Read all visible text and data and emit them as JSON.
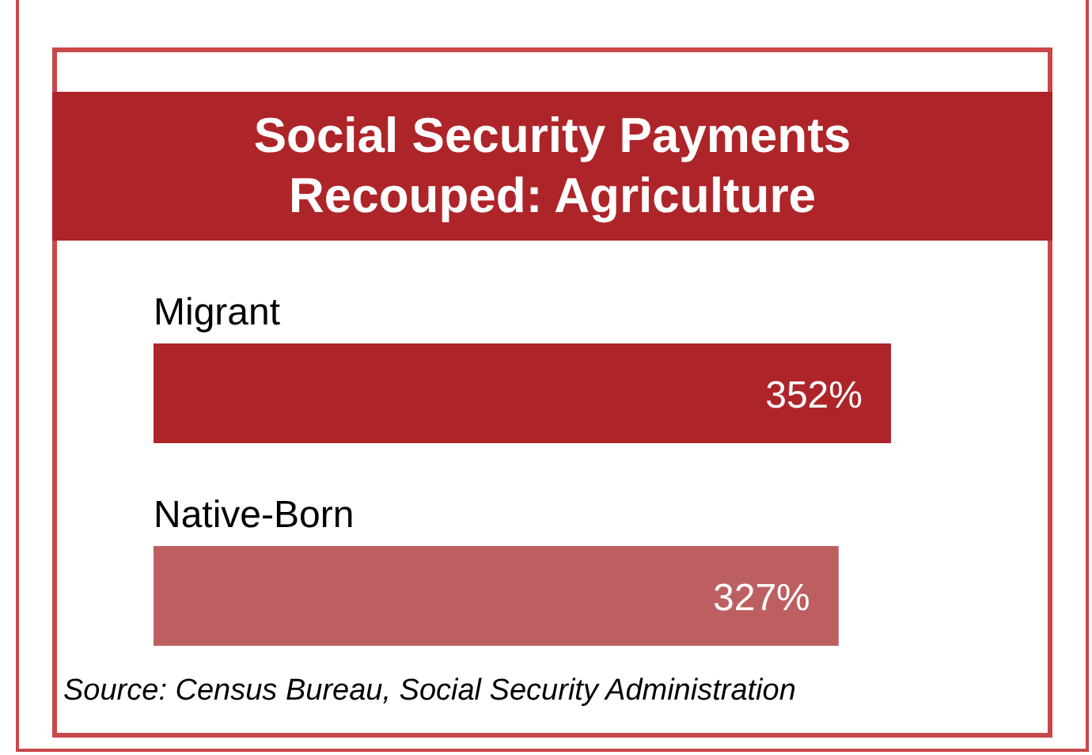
{
  "chart_data": {
    "type": "bar",
    "orientation": "horizontal",
    "title": "Social Security Payments Recouped: Agriculture",
    "categories": [
      "Migrant",
      "Native-Born"
    ],
    "values": [
      352,
      327
    ],
    "colors": [
      "#ae2529",
      "#bd5f61"
    ],
    "value_labels": [
      "352%",
      "327%"
    ],
    "annotations": [
      "Source: Census Bureau, Social Security Administration"
    ]
  }
}
